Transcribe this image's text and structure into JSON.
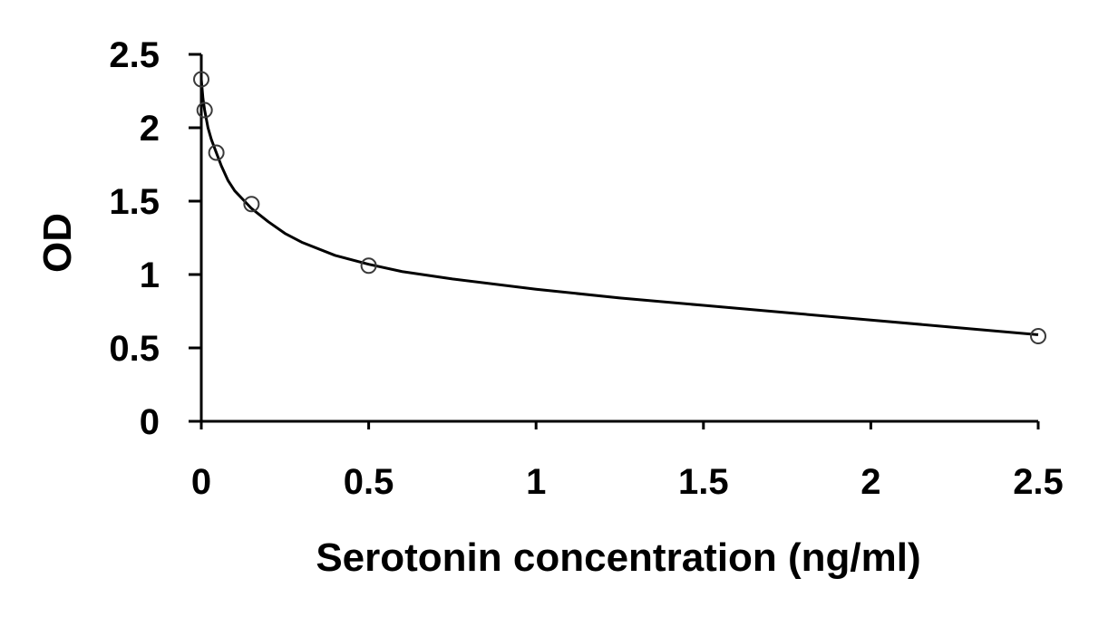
{
  "chart_data": {
    "type": "scatter",
    "title": "",
    "xlabel": "Serotonin concentration (ng/ml)",
    "ylabel": "OD",
    "xlim": [
      0,
      2.5
    ],
    "ylim": [
      0,
      2.5
    ],
    "x_ticks": [
      "0",
      "0.5",
      "1",
      "1.5",
      "2",
      "2.5"
    ],
    "y_ticks": [
      "0",
      "0.5",
      "1",
      "1.5",
      "2",
      "2.5"
    ],
    "grid": false,
    "legend": "none",
    "series": [
      {
        "points": [
          {
            "x": 0,
            "y": 2.33
          },
          {
            "x": 0.01,
            "y": 2.12
          },
          {
            "x": 0.045,
            "y": 1.83
          },
          {
            "x": 0.15,
            "y": 1.48
          },
          {
            "x": 0.5,
            "y": 1.06
          },
          {
            "x": 2.5,
            "y": 0.58
          }
        ],
        "fit_curve": {
          "x": [
            0,
            0.005,
            0.01,
            0.02,
            0.03,
            0.045,
            0.06,
            0.08,
            0.1,
            0.125,
            0.15,
            0.2,
            0.25,
            0.3,
            0.4,
            0.5,
            0.6,
            0.75,
            1.0,
            1.25,
            1.5,
            1.75,
            2.0,
            2.25,
            2.5
          ],
          "y": [
            2.33,
            2.2,
            2.12,
            2.0,
            1.92,
            1.83,
            1.74,
            1.64,
            1.57,
            1.51,
            1.45,
            1.36,
            1.28,
            1.22,
            1.13,
            1.07,
            1.02,
            0.97,
            0.9,
            0.84,
            0.79,
            0.74,
            0.69,
            0.64,
            0.59
          ]
        }
      }
    ],
    "colors": {
      "line": "#000000",
      "marker": "#3a3a3a"
    }
  }
}
